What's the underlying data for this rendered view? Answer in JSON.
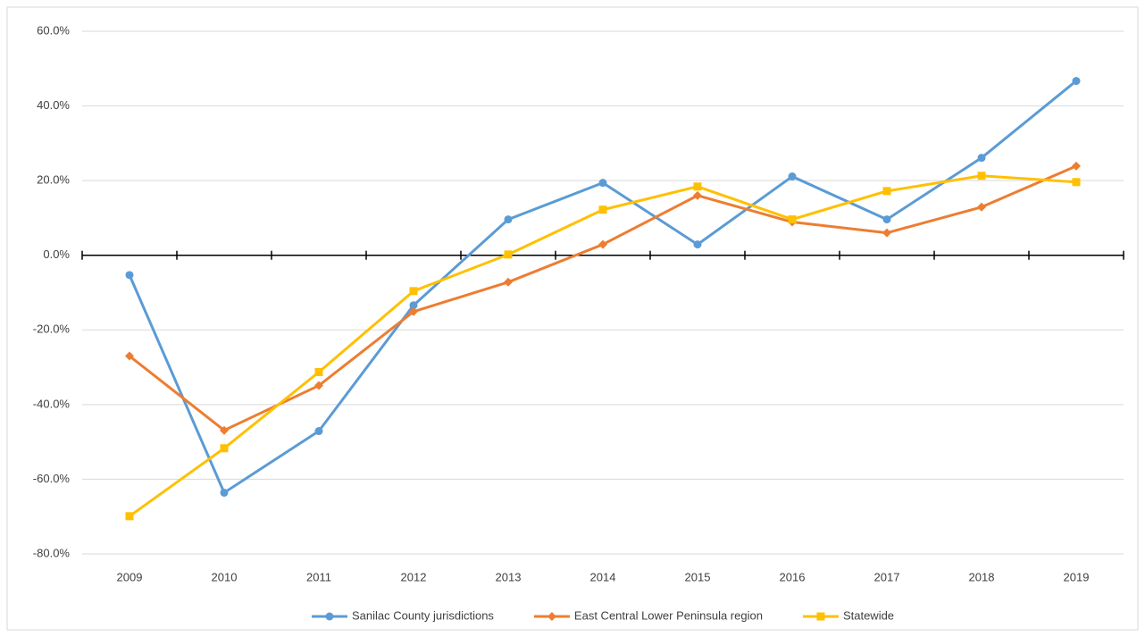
{
  "chart_data": {
    "type": "line",
    "categories": [
      "2009",
      "2010",
      "2011",
      "2012",
      "2013",
      "2014",
      "2015",
      "2016",
      "2017",
      "2018",
      "2019"
    ],
    "series": [
      {
        "name": "Sanilac County jurisdictions",
        "color": "#5b9bd5",
        "marker": "circle",
        "values": [
          -5.3,
          -63.6,
          -47.1,
          -13.4,
          9.6,
          19.4,
          2.9,
          21.1,
          9.6,
          26.1,
          46.7
        ]
      },
      {
        "name": "East Central Lower Peninsula region",
        "color": "#ed7d31",
        "marker": "diamond",
        "values": [
          -27.0,
          -46.9,
          -34.9,
          -15.1,
          -7.2,
          2.9,
          16.0,
          8.9,
          6.0,
          12.9,
          23.9
        ]
      },
      {
        "name": "Statewide",
        "color": "#ffc000",
        "marker": "square",
        "values": [
          -69.9,
          -51.7,
          -31.3,
          -9.6,
          0.2,
          12.2,
          18.4,
          9.6,
          17.2,
          21.3,
          19.6
        ]
      }
    ],
    "ylim": [
      -80,
      60
    ],
    "yticks": [
      {
        "value": -80,
        "label": "-80.0%"
      },
      {
        "value": -60,
        "label": "-60.0%"
      },
      {
        "value": -40,
        "label": "-40.0%"
      },
      {
        "value": -20,
        "label": "-20.0%"
      },
      {
        "value": 0,
        "label": "0.0%"
      },
      {
        "value": 20,
        "label": "20.0%"
      },
      {
        "value": 40,
        "label": "40.0%"
      },
      {
        "value": 60,
        "label": "60.0%"
      }
    ],
    "grid": true,
    "legend": "bottom"
  }
}
